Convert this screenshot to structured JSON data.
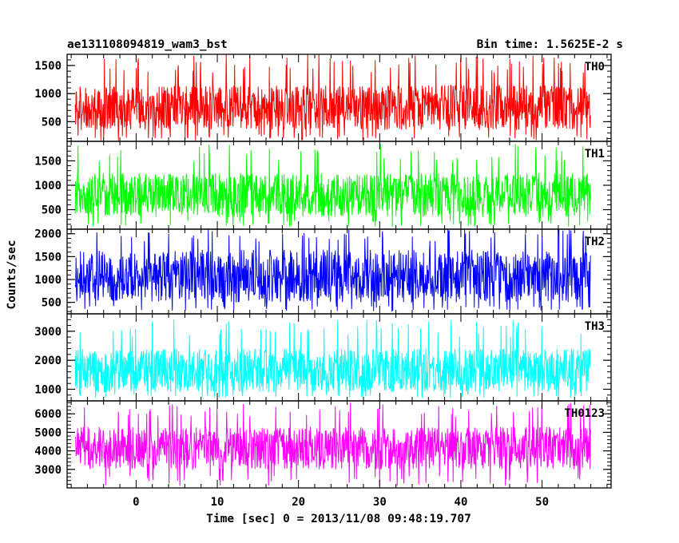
{
  "chart_data": {
    "type": "line",
    "title": "ae131108094819_wam3_bst",
    "subtitle": "Bin time: 1.5625E-2 s",
    "xlabel": "Time [sec] 0 = 2013/11/08 09:48:19.707",
    "ylabel": "Counts/sec",
    "xlim": [
      -8.5,
      58.5
    ],
    "x_ticks": [
      0,
      10,
      20,
      30,
      40,
      50
    ],
    "x_tick_labels": [
      "0",
      "10",
      "20",
      "30",
      "40",
      "50"
    ],
    "data_x_range": [
      -7.5,
      56
    ],
    "grid": false,
    "legend": "none",
    "panels": [
      {
        "name": "TH0",
        "color": "#ff0000",
        "ylim": [
          150,
          1700
        ],
        "y_ticks": [
          500,
          1000,
          1500
        ],
        "y_tick_labels": [
          "500",
          "1000",
          "1500"
        ],
        "mean": 750,
        "band": [
          350,
          1150
        ],
        "range": [
          160,
          1700
        ]
      },
      {
        "name": "TH1",
        "color": "#00ff00",
        "ylim": [
          100,
          1900
        ],
        "y_ticks": [
          500,
          1000,
          1500
        ],
        "y_tick_labels": [
          "500",
          "1000",
          "1500"
        ],
        "mean": 780,
        "band": [
          350,
          1250
        ],
        "range": [
          150,
          1850
        ]
      },
      {
        "name": "TH2",
        "color": "#0000ff",
        "ylim": [
          250,
          2100
        ],
        "y_ticks": [
          500,
          1000,
          1500,
          2000
        ],
        "y_tick_labels": [
          "500",
          "1000",
          "1500",
          "2000"
        ],
        "mean": 1050,
        "band": [
          500,
          1650
        ],
        "range": [
          300,
          2100
        ]
      },
      {
        "name": "TH3",
        "color": "#00ffff",
        "ylim": [
          600,
          3600
        ],
        "y_ticks": [
          1000,
          2000,
          3000
        ],
        "y_tick_labels": [
          "1000",
          "2000",
          "3000"
        ],
        "mean": 1600,
        "band": [
          900,
          2400
        ],
        "range": [
          700,
          3400
        ]
      },
      {
        "name": "TH0123",
        "color": "#ff00ff",
        "ylim": [
          2000,
          6700
        ],
        "y_ticks": [
          3000,
          4000,
          5000,
          6000
        ],
        "y_tick_labels": [
          "3000",
          "4000",
          "5000",
          "6000"
        ],
        "mean": 4000,
        "band": [
          3000,
          5300
        ],
        "range": [
          2100,
          6600
        ]
      }
    ]
  }
}
